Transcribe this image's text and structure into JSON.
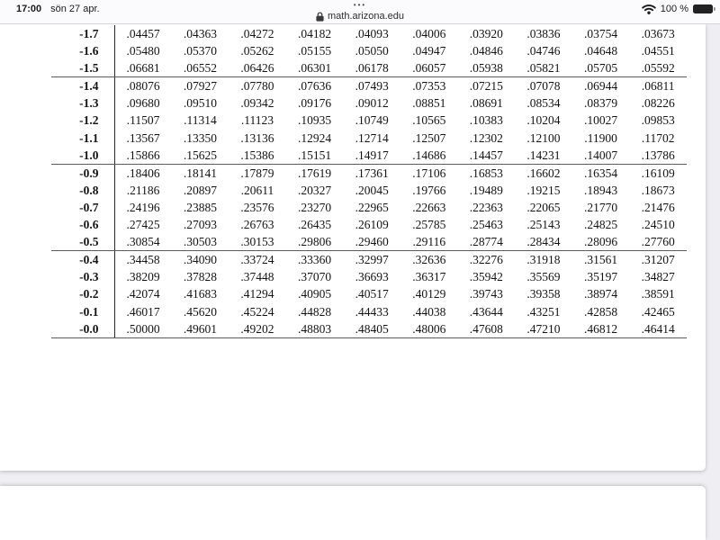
{
  "status_bar": {
    "time": "17:00",
    "date": "sön 27 apr.",
    "overflow_dots": "•••",
    "battery_label": "100 %",
    "icons": [
      "wifi-icon",
      "battery-icon"
    ]
  },
  "address_bar": {
    "url": "math.arizona.edu",
    "icons": [
      "lock-icon"
    ]
  },
  "document": {
    "type": "standard-normal-cdf-table",
    "section_rules_after": [
      "-1.5",
      "-1.0",
      "-0.5",
      "-0.0"
    ],
    "table": {
      "rows": [
        {
          "label": "-1.7",
          "values": [
            ".04457",
            ".04363",
            ".04272",
            ".04182",
            ".04093",
            ".04006",
            ".03920",
            ".03836",
            ".03754",
            ".03673"
          ]
        },
        {
          "label": "-1.6",
          "values": [
            ".05480",
            ".05370",
            ".05262",
            ".05155",
            ".05050",
            ".04947",
            ".04846",
            ".04746",
            ".04648",
            ".04551"
          ]
        },
        {
          "label": "-1.5",
          "values": [
            ".06681",
            ".06552",
            ".06426",
            ".06301",
            ".06178",
            ".06057",
            ".05938",
            ".05821",
            ".05705",
            ".05592"
          ]
        },
        {
          "label": "-1.4",
          "values": [
            ".08076",
            ".07927",
            ".07780",
            ".07636",
            ".07493",
            ".07353",
            ".07215",
            ".07078",
            ".06944",
            ".06811"
          ]
        },
        {
          "label": "-1.3",
          "values": [
            ".09680",
            ".09510",
            ".09342",
            ".09176",
            ".09012",
            ".08851",
            ".08691",
            ".08534",
            ".08379",
            ".08226"
          ]
        },
        {
          "label": "-1.2",
          "values": [
            ".11507",
            ".11314",
            ".11123",
            ".10935",
            ".10749",
            ".10565",
            ".10383",
            ".10204",
            ".10027",
            ".09853"
          ]
        },
        {
          "label": "-1.1",
          "values": [
            ".13567",
            ".13350",
            ".13136",
            ".12924",
            ".12714",
            ".12507",
            ".12302",
            ".12100",
            ".11900",
            ".11702"
          ]
        },
        {
          "label": "-1.0",
          "values": [
            ".15866",
            ".15625",
            ".15386",
            ".15151",
            ".14917",
            ".14686",
            ".14457",
            ".14231",
            ".14007",
            ".13786"
          ]
        },
        {
          "label": "-0.9",
          "values": [
            ".18406",
            ".18141",
            ".17879",
            ".17619",
            ".17361",
            ".17106",
            ".16853",
            ".16602",
            ".16354",
            ".16109"
          ]
        },
        {
          "label": "-0.8",
          "values": [
            ".21186",
            ".20897",
            ".20611",
            ".20327",
            ".20045",
            ".19766",
            ".19489",
            ".19215",
            ".18943",
            ".18673"
          ]
        },
        {
          "label": "-0.7",
          "values": [
            ".24196",
            ".23885",
            ".23576",
            ".23270",
            ".22965",
            ".22663",
            ".22363",
            ".22065",
            ".21770",
            ".21476"
          ]
        },
        {
          "label": "-0.6",
          "values": [
            ".27425",
            ".27093",
            ".26763",
            ".26435",
            ".26109",
            ".25785",
            ".25463",
            ".25143",
            ".24825",
            ".24510"
          ]
        },
        {
          "label": "-0.5",
          "values": [
            ".30854",
            ".30503",
            ".30153",
            ".29806",
            ".29460",
            ".29116",
            ".28774",
            ".28434",
            ".28096",
            ".27760"
          ]
        },
        {
          "label": "-0.4",
          "values": [
            ".34458",
            ".34090",
            ".33724",
            ".33360",
            ".32997",
            ".32636",
            ".32276",
            ".31918",
            ".31561",
            ".31207"
          ]
        },
        {
          "label": "-0.3",
          "values": [
            ".38209",
            ".37828",
            ".37448",
            ".37070",
            ".36693",
            ".36317",
            ".35942",
            ".35569",
            ".35197",
            ".34827"
          ]
        },
        {
          "label": "-0.2",
          "values": [
            ".42074",
            ".41683",
            ".41294",
            ".40905",
            ".40517",
            ".40129",
            ".39743",
            ".39358",
            ".38974",
            ".38591"
          ]
        },
        {
          "label": "-0.1",
          "values": [
            ".46017",
            ".45620",
            ".45224",
            ".44828",
            ".44433",
            ".44038",
            ".43644",
            ".43251",
            ".42858",
            ".42465"
          ]
        },
        {
          "label": "-0.0",
          "values": [
            ".50000",
            ".49601",
            ".49202",
            ".48803",
            ".48405",
            ".48006",
            ".47608",
            ".47210",
            ".46812",
            ".46414"
          ]
        }
      ]
    }
  }
}
